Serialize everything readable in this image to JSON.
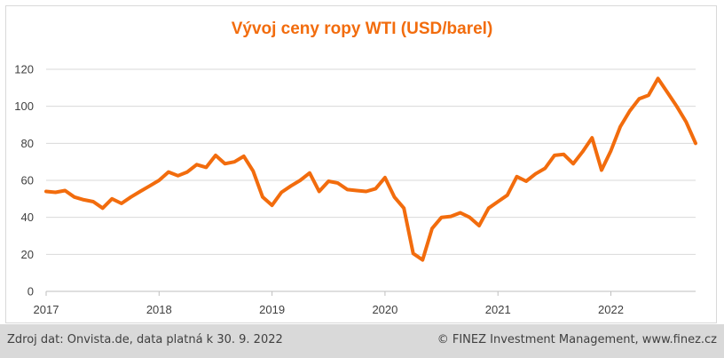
{
  "chart_data": {
    "type": "line",
    "title": "Vývoj ceny ropy WTI (USD/barel)",
    "xlabel": "",
    "ylabel": "",
    "ylim": [
      0,
      120
    ],
    "xlim": [
      2017.0,
      2022.75
    ],
    "y_ticks": [
      "0",
      "20",
      "40",
      "60",
      "80",
      "100",
      "120"
    ],
    "x_ticks": [
      "2017",
      "2018",
      "2019",
      "2020",
      "2021",
      "2022"
    ],
    "grid": true,
    "color": "#f26c0d",
    "x": [
      2017.0,
      2017.083,
      2017.167,
      2017.25,
      2017.333,
      2017.417,
      2017.5,
      2017.583,
      2017.667,
      2017.75,
      2017.833,
      2017.917,
      2018.0,
      2018.083,
      2018.167,
      2018.25,
      2018.333,
      2018.417,
      2018.5,
      2018.583,
      2018.667,
      2018.75,
      2018.833,
      2018.917,
      2019.0,
      2019.083,
      2019.167,
      2019.25,
      2019.333,
      2019.417,
      2019.5,
      2019.583,
      2019.667,
      2019.75,
      2019.833,
      2019.917,
      2020.0,
      2020.083,
      2020.167,
      2020.25,
      2020.333,
      2020.417,
      2020.5,
      2020.583,
      2020.667,
      2020.75,
      2020.833,
      2020.917,
      2021.0,
      2021.083,
      2021.167,
      2021.25,
      2021.333,
      2021.417,
      2021.5,
      2021.583,
      2021.667,
      2021.75,
      2021.833,
      2021.917,
      2022.0,
      2022.083,
      2022.167,
      2022.25,
      2022.333,
      2022.417,
      2022.5,
      2022.583,
      2022.667,
      2022.75
    ],
    "values": [
      54,
      53.5,
      54.5,
      51,
      49.5,
      48.5,
      45,
      50,
      47.5,
      51,
      54,
      57,
      60,
      64.5,
      62.5,
      64.5,
      68.5,
      67,
      73.5,
      69,
      70,
      73,
      65,
      51,
      46.5,
      53.5,
      57,
      60,
      64,
      54,
      59.5,
      58.5,
      55,
      54.5,
      54,
      55.5,
      61.5,
      51,
      45,
      20.5,
      17,
      34,
      40,
      40.5,
      42.5,
      40,
      35.5,
      45,
      48.5,
      52,
      62,
      59.5,
      63.5,
      66.5,
      73.5,
      74,
      69,
      75.5,
      83,
      65.5,
      76,
      89,
      97.5,
      104,
      106,
      115,
      107.5,
      100,
      91.5,
      80
    ]
  },
  "footer": {
    "source": "Zdroj dat: Onvista.de, data platná k 30. 9. 2022",
    "copyright": "© FINEZ Investment Management, www.finez.cz"
  }
}
